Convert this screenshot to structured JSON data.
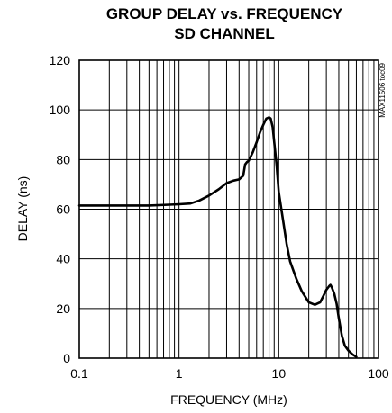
{
  "chart_data": {
    "type": "line",
    "title": "GROUP DELAY vs. FREQUENCY",
    "subtitle": "SD CHANNEL",
    "xlabel": "FREQUENCY (MHz)",
    "ylabel": "DELAY (ns)",
    "xscale": "log",
    "xlim": [
      0.1,
      100
    ],
    "ylim": [
      0,
      120
    ],
    "grid": true,
    "xticks": [
      {
        "value": 0.1,
        "label": "0.1"
      },
      {
        "value": 1,
        "label": "1"
      },
      {
        "value": 10,
        "label": "10"
      },
      {
        "value": 100,
        "label": "100"
      }
    ],
    "yticks": [
      {
        "value": 0,
        "label": "0"
      },
      {
        "value": 20,
        "label": "20"
      },
      {
        "value": 40,
        "label": "40"
      },
      {
        "value": 60,
        "label": "60"
      },
      {
        "value": 80,
        "label": "80"
      },
      {
        "value": 100,
        "label": "100"
      },
      {
        "value": 120,
        "label": "120"
      }
    ],
    "annotation": "MAX11506 toc09",
    "line_color": "#000000",
    "series": [
      {
        "x": [
          0.1,
          0.2,
          0.5,
          0.8,
          1.0,
          1.3,
          1.6,
          2.0,
          2.5,
          3.0,
          3.5,
          4.0,
          4.4,
          4.6,
          4.8,
          5.0,
          5.5,
          6.0,
          6.5,
          7.0,
          7.5,
          8.0,
          8.3,
          8.7,
          9.0,
          9.5,
          10,
          11,
          12,
          13,
          15,
          17,
          20,
          23,
          26,
          28,
          30,
          32,
          33,
          34,
          36,
          38,
          40,
          43,
          46,
          50,
          55,
          60
        ],
        "y": [
          61.5,
          61.5,
          61.5,
          61.8,
          62,
          62.3,
          63.5,
          65.5,
          68,
          70.5,
          71.5,
          72,
          73.5,
          78,
          79,
          79.5,
          83,
          87,
          91,
          94,
          96.5,
          97,
          96.5,
          93,
          87,
          78,
          67,
          56,
          46,
          39,
          32,
          27,
          22.5,
          21.5,
          22.5,
          25,
          27.5,
          29,
          29.5,
          28.5,
          26,
          22,
          16,
          9,
          5,
          3,
          1.5,
          0.5
        ]
      }
    ]
  }
}
